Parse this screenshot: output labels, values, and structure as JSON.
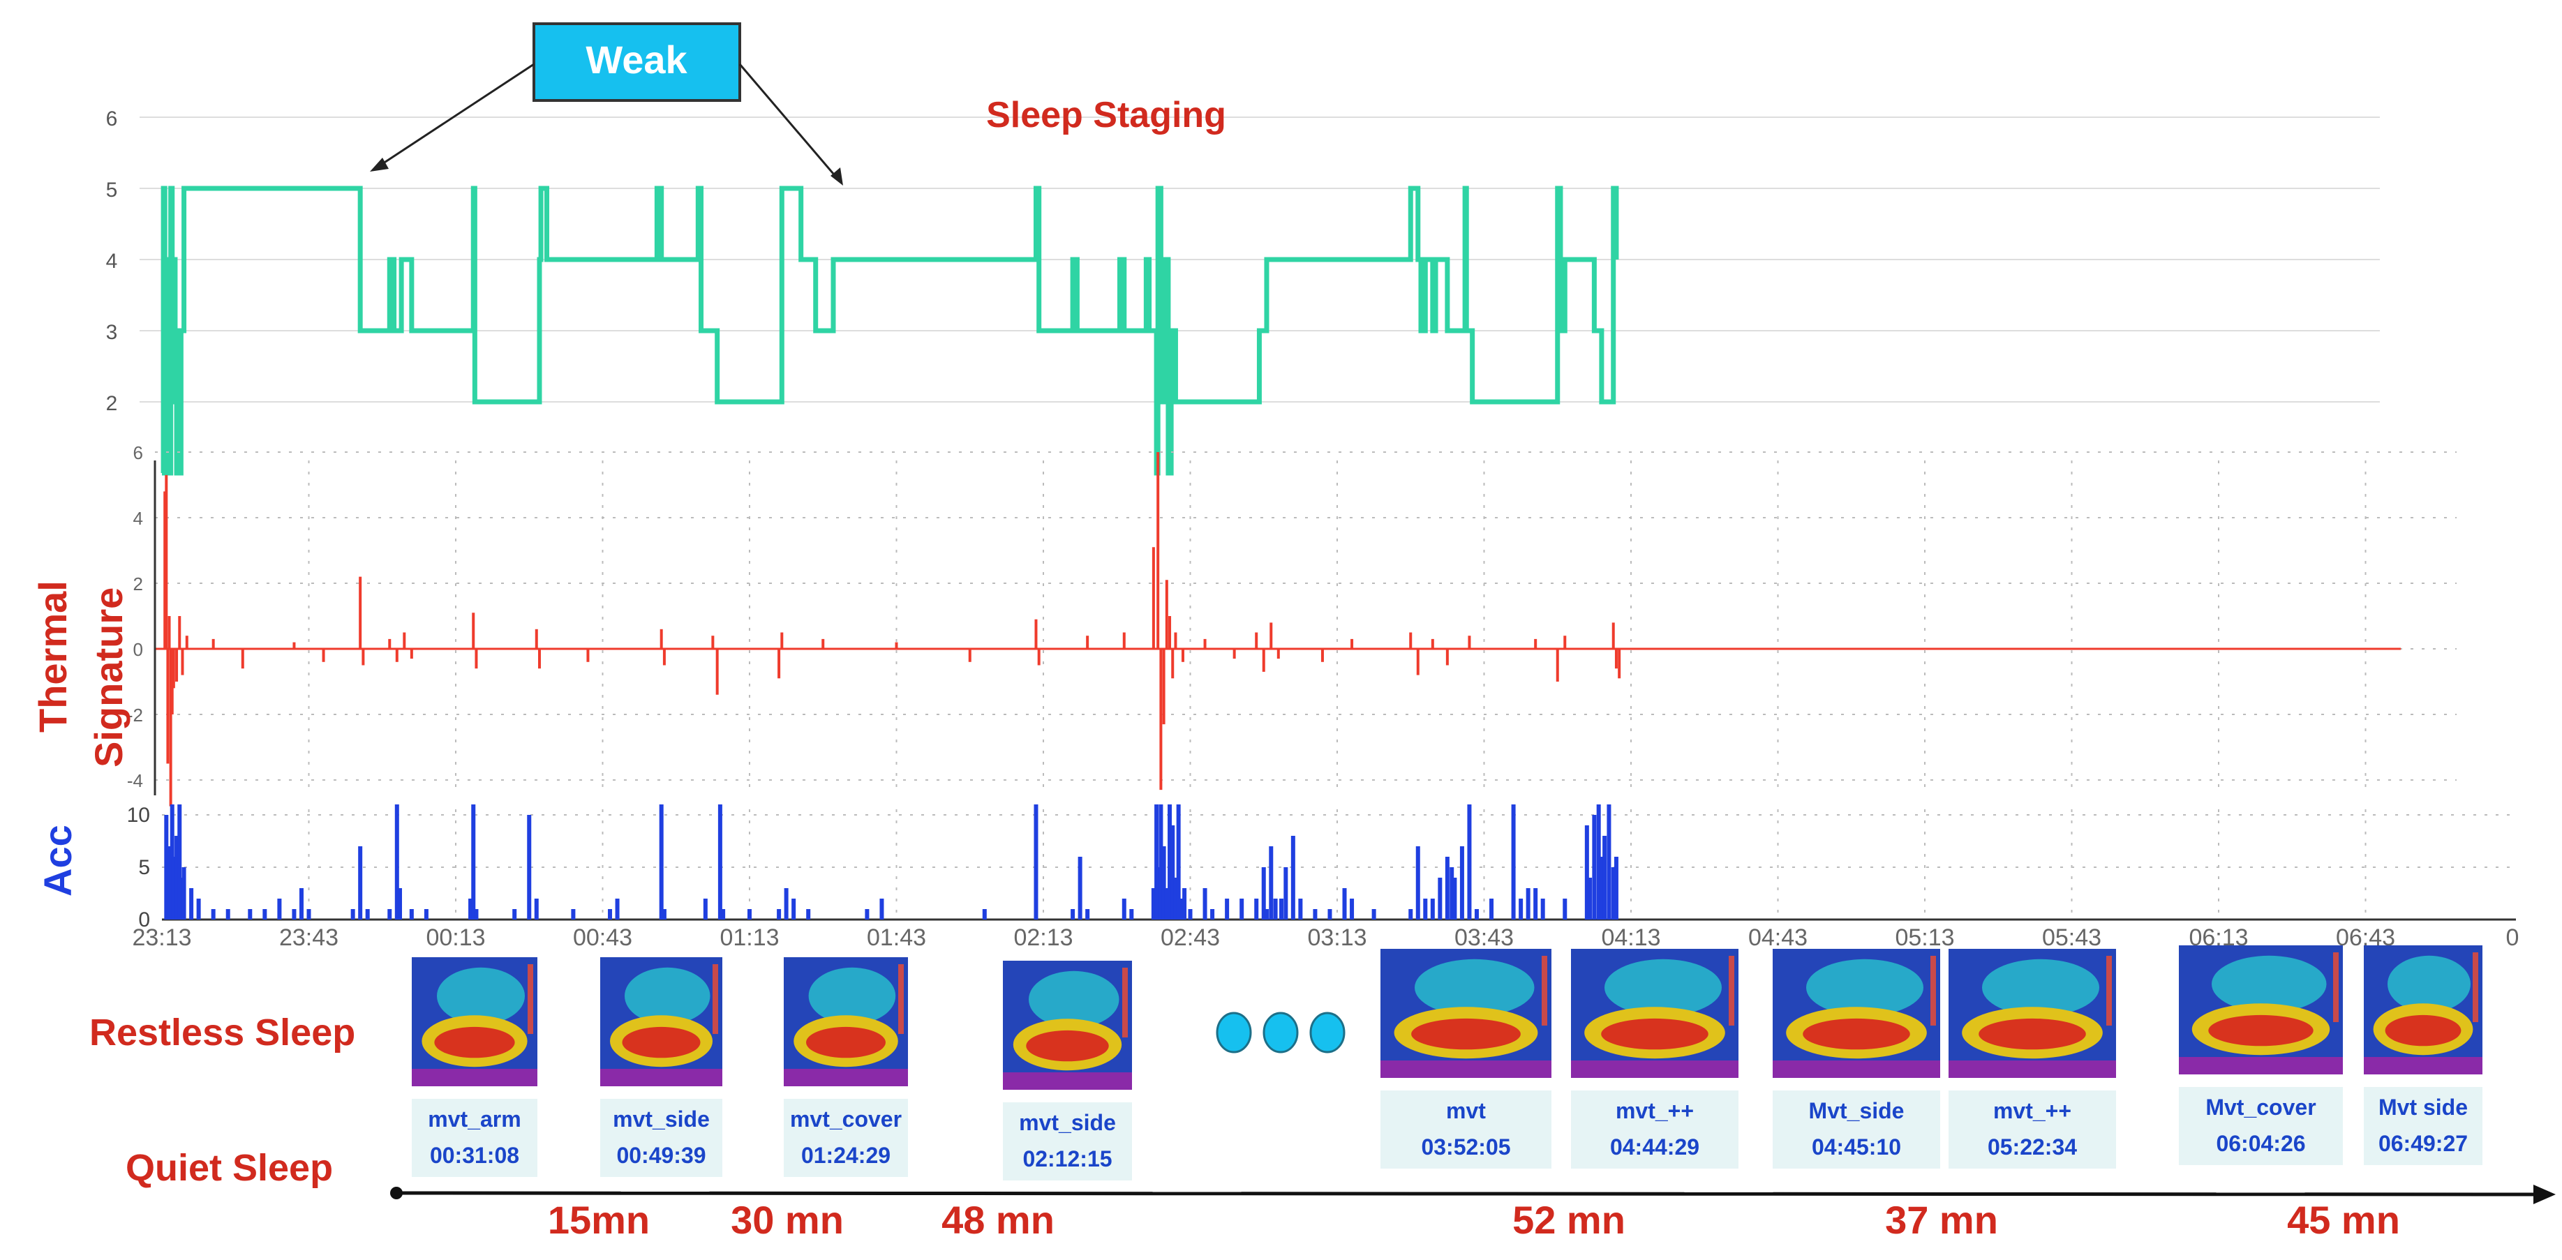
{
  "colors": {
    "sleep": "#2fd4a4",
    "thermal": "#ef3b2c",
    "acc": "#1f3fe0",
    "label_red": "#d12a1e",
    "label_blue": "#1f3fe0",
    "callout_fill": "#16c0ef",
    "caption_bg": "#e6f4f5",
    "caption_text": "#1a45c9",
    "dots": "#16c0ef",
    "grid": "#bbbbbb"
  },
  "callout": {
    "label": "Weak"
  },
  "labels": {
    "thermal_line1": "Thermal",
    "thermal_line2": "Signature",
    "acc": "Acc",
    "restless": "Restless Sleep",
    "quiet": "Quiet Sleep",
    "ellipsis_icon": "three-dots-icon"
  },
  "chart_data": [
    {
      "type": "line",
      "title": "Sleep Staging",
      "series": [
        {
          "values": [
            [
              0.0,
              1
            ],
            [
              0.01,
              1
            ],
            [
              0.01,
              5
            ],
            [
              0.02,
              5
            ],
            [
              0.02,
              2
            ],
            [
              0.03,
              2
            ],
            [
              0.03,
              4
            ],
            [
              0.04,
              4
            ],
            [
              0.04,
              1
            ],
            [
              0.06,
              1
            ],
            [
              0.06,
              5
            ],
            [
              0.07,
              5
            ],
            [
              0.07,
              2
            ],
            [
              0.08,
              2
            ],
            [
              0.08,
              4
            ],
            [
              0.09,
              4
            ],
            [
              0.09,
              3
            ],
            [
              0.1,
              3
            ],
            [
              0.1,
              1
            ],
            [
              0.13,
              1
            ],
            [
              0.13,
              3
            ],
            [
              0.15,
              3
            ],
            [
              0.15,
              5
            ],
            [
              1.35,
              5
            ],
            [
              1.35,
              3
            ],
            [
              1.55,
              3
            ],
            [
              1.55,
              4
            ],
            [
              1.58,
              4
            ],
            [
              1.58,
              3
            ],
            [
              1.63,
              3
            ],
            [
              1.63,
              4
            ],
            [
              1.7,
              4
            ],
            [
              1.7,
              3
            ],
            [
              2.12,
              3
            ],
            [
              2.12,
              5
            ],
            [
              2.13,
              5
            ],
            [
              2.13,
              2
            ],
            [
              2.57,
              2
            ],
            [
              2.57,
              4
            ],
            [
              2.58,
              4
            ],
            [
              2.58,
              5
            ],
            [
              2.62,
              5
            ],
            [
              2.62,
              4
            ],
            [
              3.37,
              4
            ],
            [
              3.37,
              5
            ],
            [
              3.4,
              5
            ],
            [
              3.4,
              4
            ],
            [
              3.65,
              4
            ],
            [
              3.65,
              5
            ],
            [
              3.67,
              5
            ],
            [
              3.67,
              3
            ],
            [
              3.78,
              3
            ],
            [
              3.78,
              2
            ],
            [
              4.22,
              2
            ],
            [
              4.22,
              5
            ],
            [
              4.35,
              5
            ],
            [
              4.35,
              4
            ],
            [
              4.45,
              4
            ],
            [
              4.45,
              3
            ],
            [
              4.57,
              3
            ],
            [
              4.57,
              4
            ],
            [
              5.95,
              4
            ],
            [
              5.95,
              5
            ],
            [
              5.97,
              5
            ],
            [
              5.97,
              3
            ],
            [
              6.2,
              3
            ],
            [
              6.2,
              4
            ],
            [
              6.23,
              4
            ],
            [
              6.23,
              3
            ],
            [
              6.52,
              3
            ],
            [
              6.52,
              4
            ],
            [
              6.55,
              4
            ],
            [
              6.55,
              3
            ],
            [
              6.7,
              3
            ],
            [
              6.7,
              4
            ],
            [
              6.72,
              4
            ],
            [
              6.72,
              3
            ],
            [
              6.77,
              3
            ],
            [
              6.77,
              1
            ],
            [
              6.78,
              1
            ],
            [
              6.78,
              5
            ],
            [
              6.8,
              5
            ],
            [
              6.8,
              2
            ],
            [
              6.82,
              2
            ],
            [
              6.82,
              4
            ],
            [
              6.85,
              4
            ],
            [
              6.85,
              1
            ],
            [
              6.87,
              1
            ],
            [
              6.87,
              3
            ],
            [
              6.9,
              3
            ],
            [
              6.9,
              2
            ],
            [
              7.47,
              2
            ],
            [
              7.47,
              3
            ],
            [
              7.52,
              3
            ],
            [
              7.52,
              4
            ],
            [
              8.5,
              4
            ],
            [
              8.5,
              5
            ],
            [
              8.55,
              5
            ],
            [
              8.55,
              4
            ],
            [
              8.57,
              4
            ],
            [
              8.57,
              3
            ],
            [
              8.6,
              3
            ],
            [
              8.6,
              4
            ],
            [
              8.65,
              4
            ],
            [
              8.65,
              3
            ],
            [
              8.67,
              3
            ],
            [
              8.67,
              4
            ],
            [
              8.75,
              4
            ],
            [
              8.75,
              3
            ],
            [
              8.87,
              3
            ],
            [
              8.87,
              5
            ],
            [
              8.88,
              5
            ],
            [
              8.88,
              3
            ],
            [
              8.92,
              3
            ],
            [
              8.92,
              2
            ],
            [
              9.5,
              2
            ],
            [
              9.5,
              5
            ],
            [
              9.52,
              5
            ],
            [
              9.52,
              3
            ],
            [
              9.55,
              3
            ],
            [
              9.55,
              4
            ],
            [
              9.75,
              4
            ],
            [
              9.75,
              3
            ],
            [
              9.8,
              3
            ],
            [
              9.8,
              2
            ],
            [
              9.88,
              2
            ],
            [
              9.88,
              5
            ],
            [
              9.9,
              5
            ],
            [
              9.9,
              4
            ]
          ]
        }
      ],
      "ylim": [
        1,
        6
      ],
      "yticks": [
        2,
        3,
        4,
        5,
        6
      ],
      "grid": true
    },
    {
      "type": "line",
      "title": "",
      "ylabel": "Thermal Signature",
      "yticks": [
        "-4",
        "-2",
        "0",
        "2",
        "4",
        "6"
      ],
      "ylim": [
        -5,
        6
      ],
      "grid": true,
      "spikes": [
        [
          0.02,
          4.8
        ],
        [
          0.03,
          5.3
        ],
        [
          0.04,
          -3.5
        ],
        [
          0.05,
          1.0
        ],
        [
          0.06,
          -4.8
        ],
        [
          0.07,
          -2.0
        ],
        [
          0.08,
          -1.2
        ],
        [
          0.1,
          -1.0
        ],
        [
          0.12,
          1.0
        ],
        [
          0.14,
          -0.8
        ],
        [
          0.17,
          0.4
        ],
        [
          0.35,
          0.3
        ],
        [
          0.55,
          -0.6
        ],
        [
          0.9,
          0.2
        ],
        [
          1.1,
          -0.4
        ],
        [
          1.35,
          2.2
        ],
        [
          1.37,
          -0.5
        ],
        [
          1.55,
          0.3
        ],
        [
          1.6,
          -0.4
        ],
        [
          1.65,
          0.5
        ],
        [
          1.7,
          -0.3
        ],
        [
          2.12,
          1.1
        ],
        [
          2.14,
          -0.6
        ],
        [
          2.55,
          0.6
        ],
        [
          2.57,
          -0.6
        ],
        [
          2.9,
          -0.4
        ],
        [
          3.4,
          0.6
        ],
        [
          3.42,
          -0.5
        ],
        [
          3.75,
          0.4
        ],
        [
          3.78,
          -1.4
        ],
        [
          4.2,
          -0.9
        ],
        [
          4.22,
          0.5
        ],
        [
          4.5,
          0.3
        ],
        [
          5.0,
          0.2
        ],
        [
          5.5,
          -0.4
        ],
        [
          5.95,
          0.9
        ],
        [
          5.97,
          -0.5
        ],
        [
          6.3,
          0.4
        ],
        [
          6.55,
          0.5
        ],
        [
          6.75,
          3.1
        ],
        [
          6.78,
          6.0
        ],
        [
          6.8,
          -4.3
        ],
        [
          6.82,
          -2.3
        ],
        [
          6.84,
          2.1
        ],
        [
          6.86,
          1.0
        ],
        [
          6.88,
          -0.9
        ],
        [
          6.9,
          0.5
        ],
        [
          6.95,
          -0.4
        ],
        [
          7.1,
          0.3
        ],
        [
          7.3,
          -0.3
        ],
        [
          7.45,
          0.5
        ],
        [
          7.5,
          -0.7
        ],
        [
          7.55,
          0.8
        ],
        [
          7.6,
          -0.3
        ],
        [
          7.9,
          -0.4
        ],
        [
          8.1,
          0.3
        ],
        [
          8.5,
          0.5
        ],
        [
          8.55,
          -0.8
        ],
        [
          8.65,
          0.3
        ],
        [
          8.75,
          -0.5
        ],
        [
          8.9,
          0.4
        ],
        [
          9.35,
          0.3
        ],
        [
          9.5,
          -1.0
        ],
        [
          9.55,
          0.4
        ],
        [
          9.88,
          0.8
        ],
        [
          9.9,
          -0.6
        ],
        [
          9.92,
          -0.9
        ]
      ]
    },
    {
      "type": "bar",
      "title": "",
      "ylabel": "Acc",
      "yticks": [
        "0",
        "5",
        "10"
      ],
      "ylim": [
        0,
        11
      ],
      "xticks": [
        "23:13",
        "23:43",
        "00:13",
        "00:43",
        "01:13",
        "01:43",
        "02:13",
        "02:43",
        "03:13",
        "03:43",
        "04:13",
        "04:43",
        "05:13",
        "05:43",
        "06:13",
        "06:43",
        "0"
      ],
      "grid": true,
      "values": [
        [
          0.03,
          10
        ],
        [
          0.05,
          7
        ],
        [
          0.07,
          11
        ],
        [
          0.08,
          6
        ],
        [
          0.1,
          8
        ],
        [
          0.12,
          11
        ],
        [
          0.13,
          4
        ],
        [
          0.15,
          5
        ],
        [
          0.2,
          3
        ],
        [
          0.25,
          2
        ],
        [
          0.35,
          1
        ],
        [
          0.45,
          1
        ],
        [
          0.6,
          1
        ],
        [
          0.7,
          1
        ],
        [
          0.8,
          2
        ],
        [
          0.9,
          1
        ],
        [
          0.95,
          3
        ],
        [
          1.0,
          1
        ],
        [
          1.3,
          1
        ],
        [
          1.35,
          7
        ],
        [
          1.4,
          1
        ],
        [
          1.55,
          1
        ],
        [
          1.6,
          11
        ],
        [
          1.62,
          3
        ],
        [
          1.7,
          1
        ],
        [
          1.8,
          1
        ],
        [
          2.1,
          2
        ],
        [
          2.12,
          11
        ],
        [
          2.14,
          1
        ],
        [
          2.4,
          1
        ],
        [
          2.5,
          10
        ],
        [
          2.55,
          2
        ],
        [
          2.8,
          1
        ],
        [
          3.05,
          1
        ],
        [
          3.1,
          2
        ],
        [
          3.4,
          11
        ],
        [
          3.42,
          1
        ],
        [
          3.7,
          2
        ],
        [
          3.8,
          11
        ],
        [
          3.82,
          1
        ],
        [
          4.0,
          1
        ],
        [
          4.2,
          1
        ],
        [
          4.25,
          3
        ],
        [
          4.3,
          2
        ],
        [
          4.4,
          1
        ],
        [
          4.8,
          1
        ],
        [
          4.9,
          2
        ],
        [
          5.6,
          1
        ],
        [
          5.95,
          11
        ],
        [
          6.2,
          1
        ],
        [
          6.25,
          6
        ],
        [
          6.3,
          1
        ],
        [
          6.55,
          2
        ],
        [
          6.6,
          1
        ],
        [
          6.75,
          3
        ],
        [
          6.77,
          11
        ],
        [
          6.78,
          5
        ],
        [
          6.8,
          11
        ],
        [
          6.82,
          7
        ],
        [
          6.84,
          3
        ],
        [
          6.86,
          11
        ],
        [
          6.88,
          9
        ],
        [
          6.9,
          4
        ],
        [
          6.92,
          11
        ],
        [
          6.94,
          2
        ],
        [
          6.96,
          3
        ],
        [
          7.0,
          1
        ],
        [
          7.1,
          3
        ],
        [
          7.15,
          1
        ],
        [
          7.25,
          2
        ],
        [
          7.35,
          2
        ],
        [
          7.45,
          2
        ],
        [
          7.5,
          5
        ],
        [
          7.52,
          1
        ],
        [
          7.55,
          7
        ],
        [
          7.58,
          2
        ],
        [
          7.62,
          2
        ],
        [
          7.65,
          5
        ],
        [
          7.7,
          8
        ],
        [
          7.75,
          2
        ],
        [
          7.85,
          1
        ],
        [
          7.95,
          1
        ],
        [
          8.05,
          3
        ],
        [
          8.1,
          2
        ],
        [
          8.25,
          1
        ],
        [
          8.5,
          1
        ],
        [
          8.55,
          7
        ],
        [
          8.6,
          2
        ],
        [
          8.65,
          2
        ],
        [
          8.7,
          4
        ],
        [
          8.75,
          6
        ],
        [
          8.78,
          5
        ],
        [
          8.8,
          4
        ],
        [
          8.85,
          7
        ],
        [
          8.9,
          11
        ],
        [
          8.95,
          1
        ],
        [
          9.05,
          2
        ],
        [
          9.2,
          11
        ],
        [
          9.25,
          2
        ],
        [
          9.3,
          3
        ],
        [
          9.35,
          3
        ],
        [
          9.4,
          2
        ],
        [
          9.55,
          2
        ],
        [
          9.7,
          9
        ],
        [
          9.72,
          4
        ],
        [
          9.75,
          10
        ],
        [
          9.78,
          11
        ],
        [
          9.8,
          6
        ],
        [
          9.82,
          8
        ],
        [
          9.85,
          11
        ],
        [
          9.88,
          5
        ],
        [
          9.9,
          6
        ]
      ]
    }
  ],
  "movement_events": [
    {
      "label": "mvt_arm",
      "time": "00:31:08"
    },
    {
      "label": "mvt_side",
      "time": "00:49:39"
    },
    {
      "label": "mvt_cover",
      "time": "01:24:29"
    },
    {
      "label": "mvt_side",
      "time": "02:12:15"
    },
    {
      "label": "mvt",
      "time": "03:52:05"
    },
    {
      "label": "mvt_++",
      "time": "04:44:29"
    },
    {
      "label": "Mvt_side",
      "time": "04:45:10"
    },
    {
      "label": "mvt_++",
      "time": "05:22:34"
    },
    {
      "label": "Mvt_cover",
      "time": "06:04:26"
    },
    {
      "label": "Mvt side",
      "time": "06:49:27"
    }
  ],
  "durations": [
    "15mn",
    "30 mn",
    "48 mn",
    "52 mn",
    "37 mn",
    "45 mn"
  ]
}
